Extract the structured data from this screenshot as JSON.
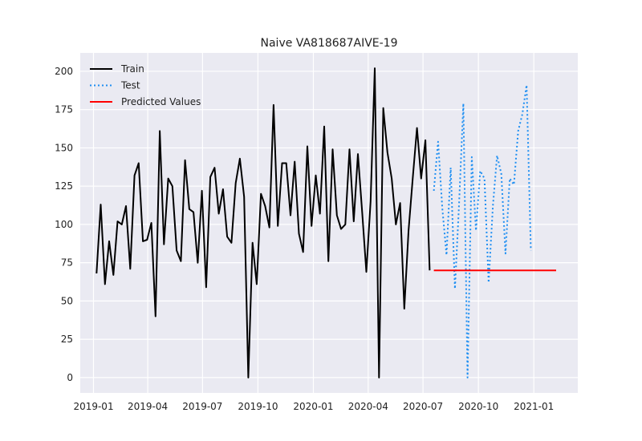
{
  "chart_data": {
    "type": "line",
    "title": "Naive VA818687AIVE-19",
    "xlabel": "",
    "ylabel": "",
    "x_range": [
      "2018-12-10",
      "2021-03-15"
    ],
    "ylim": [
      -10,
      212
    ],
    "x_ticks": [
      {
        "date": "2019-01-01",
        "label": "2019-01"
      },
      {
        "date": "2019-04-01",
        "label": "2019-04"
      },
      {
        "date": "2019-07-01",
        "label": "2019-07"
      },
      {
        "date": "2019-10-01",
        "label": "2019-10"
      },
      {
        "date": "2020-01-01",
        "label": "2020-01"
      },
      {
        "date": "2020-04-01",
        "label": "2020-04"
      },
      {
        "date": "2020-07-01",
        "label": "2020-07"
      },
      {
        "date": "2020-10-01",
        "label": "2020-10"
      },
      {
        "date": "2021-01-01",
        "label": "2021-01"
      }
    ],
    "y_ticks": [
      0,
      25,
      50,
      75,
      100,
      125,
      150,
      175,
      200
    ],
    "grid": true,
    "legend_position": "top-left",
    "series": [
      {
        "name": "Train",
        "color": "#000000",
        "style": "solid",
        "x": [
          "2019-01-06",
          "2019-01-13",
          "2019-01-20",
          "2019-01-27",
          "2019-02-03",
          "2019-02-10",
          "2019-02-17",
          "2019-02-24",
          "2019-03-03",
          "2019-03-10",
          "2019-03-17",
          "2019-03-24",
          "2019-03-31",
          "2019-04-07",
          "2019-04-14",
          "2019-04-21",
          "2019-04-28",
          "2019-05-05",
          "2019-05-12",
          "2019-05-19",
          "2019-05-26",
          "2019-06-02",
          "2019-06-09",
          "2019-06-16",
          "2019-06-23",
          "2019-06-30",
          "2019-07-07",
          "2019-07-14",
          "2019-07-21",
          "2019-07-28",
          "2019-08-04",
          "2019-08-11",
          "2019-08-18",
          "2019-08-25",
          "2019-09-01",
          "2019-09-08",
          "2019-09-15",
          "2019-09-22",
          "2019-09-29",
          "2019-10-06",
          "2019-10-13",
          "2019-10-20",
          "2019-10-27",
          "2019-11-03",
          "2019-11-10",
          "2019-11-17",
          "2019-11-24",
          "2019-12-01",
          "2019-12-08",
          "2019-12-15",
          "2019-12-22",
          "2019-12-29",
          "2020-01-05",
          "2020-01-12",
          "2020-01-19",
          "2020-01-26",
          "2020-02-02",
          "2020-02-09",
          "2020-02-16",
          "2020-02-23",
          "2020-03-01",
          "2020-03-08",
          "2020-03-15",
          "2020-03-22",
          "2020-03-29",
          "2020-04-05",
          "2020-04-12",
          "2020-04-19",
          "2020-04-26",
          "2020-05-03",
          "2020-05-10",
          "2020-05-17",
          "2020-05-24",
          "2020-05-31",
          "2020-06-07",
          "2020-06-14",
          "2020-06-21",
          "2020-06-28",
          "2020-07-05",
          "2020-07-12"
        ],
        "values": [
          68,
          113,
          61,
          89,
          67,
          102,
          100,
          112,
          71,
          132,
          140,
          89,
          90,
          101,
          40,
          161,
          87,
          130,
          125,
          83,
          76,
          142,
          110,
          108,
          75,
          122,
          59,
          131,
          137,
          107,
          123,
          92,
          88,
          127,
          143,
          118,
          0,
          88,
          61,
          120,
          112,
          98,
          178,
          99,
          140,
          140,
          106,
          141,
          94,
          82,
          151,
          99,
          132,
          107,
          164,
          76,
          149,
          106,
          97,
          100,
          149,
          102,
          146,
          108,
          69,
          115,
          202,
          0,
          176,
          147,
          130,
          100,
          114,
          45,
          96,
          130,
          163,
          130,
          155,
          70
        ]
      },
      {
        "name": "Test",
        "color": "#1f8ff2",
        "style": "dotted",
        "x": [
          "2020-07-19",
          "2020-07-26",
          "2020-08-02",
          "2020-08-09",
          "2020-08-16",
          "2020-08-23",
          "2020-08-30",
          "2020-09-06",
          "2020-09-13",
          "2020-09-20",
          "2020-09-27",
          "2020-10-04",
          "2020-10-11",
          "2020-10-18",
          "2020-10-25",
          "2020-11-01",
          "2020-11-08",
          "2020-11-15",
          "2020-11-22",
          "2020-11-29",
          "2020-12-06",
          "2020-12-13",
          "2020-12-20",
          "2020-12-27"
        ],
        "values": [
          122,
          154,
          111,
          80,
          137,
          58,
          114,
          179,
          0,
          144,
          96,
          135,
          130,
          62,
          112,
          145,
          133,
          81,
          130,
          126,
          161,
          172,
          191,
          83
        ]
      },
      {
        "name": "Predicted Values",
        "color": "#ff0000",
        "style": "solid",
        "x": [
          "2020-07-19",
          "2021-02-07"
        ],
        "values": [
          70,
          70
        ]
      }
    ]
  }
}
